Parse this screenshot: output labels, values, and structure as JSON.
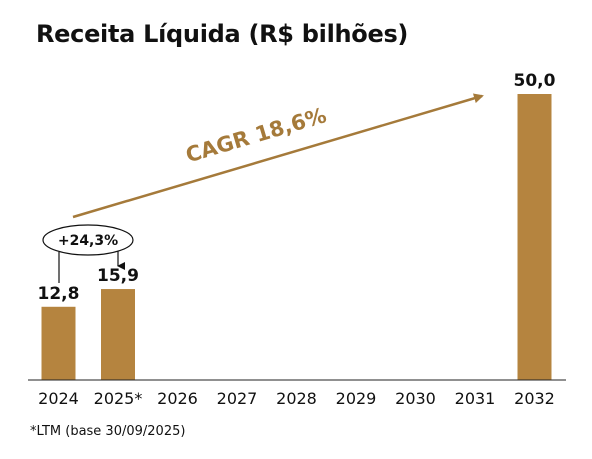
{
  "chart_data": {
    "type": "bar",
    "title": "Receita Líquida (R$ bilhões)",
    "categories": [
      "2024",
      "2025*",
      "2026",
      "2027",
      "2028",
      "2029",
      "2030",
      "2031",
      "2032"
    ],
    "values": [
      12.8,
      15.9,
      null,
      null,
      null,
      null,
      null,
      null,
      50.0
    ],
    "data_labels": [
      "12,8",
      "15,9",
      "",
      "",
      "",
      "",
      "",
      "",
      "50,0"
    ],
    "ylim": [
      0,
      50
    ],
    "grid": false,
    "annotations": {
      "cagr": "CAGR 18,6%",
      "growth": "+24,3%"
    },
    "footnote": "*LTM (base 30/09/2025)",
    "colors": {
      "bar": "#b5843f",
      "cagr": "#a57a3a",
      "text": "#111111"
    }
  }
}
